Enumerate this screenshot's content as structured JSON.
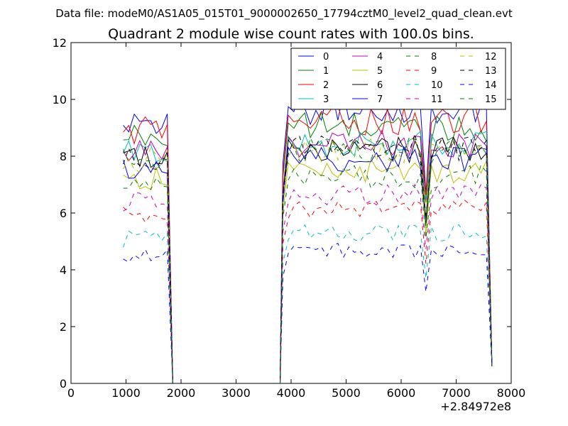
{
  "suptitle": "Data file: modeM0/AS1A05_015T01_9000002650_17794cztM0_level2_quad_clean.evt",
  "chart_data": {
    "type": "line",
    "title": "Quadrant 2 module wise count rates with 100.0s bins.",
    "xlabel": "",
    "ylabel": "",
    "x_offset_label": "+2.84972e8",
    "xlim": [
      0,
      8000
    ],
    "ylim": [
      0,
      12
    ],
    "xticks": [
      0,
      1000,
      2000,
      3000,
      4000,
      5000,
      6000,
      7000,
      8000
    ],
    "xtick_labels": [
      "0",
      "1000",
      "2000",
      "3000",
      "4000",
      "5000",
      "6000",
      "7000",
      "8000"
    ],
    "yticks": [
      0,
      2,
      4,
      6,
      8,
      10,
      12
    ],
    "ytick_labels": [
      "0",
      "2",
      "4",
      "6",
      "8",
      "10",
      "12"
    ],
    "legend_position": "top-right",
    "gap": [
      1850,
      3800
    ],
    "x_start": 950,
    "x_gap_start": 1750,
    "x_resume": 3850,
    "x_end": 7650,
    "series": [
      {
        "name": "0",
        "color": "#0000ff",
        "dashed": false,
        "level": 9.3
      },
      {
        "name": "1",
        "color": "#008000",
        "dashed": false,
        "level": 8.7
      },
      {
        "name": "2",
        "color": "#ff0000",
        "dashed": false,
        "level": 8.9
      },
      {
        "name": "3",
        "color": "#00bfbf",
        "dashed": false,
        "level": 8.1
      },
      {
        "name": "4",
        "color": "#bf00bf",
        "dashed": false,
        "level": 8.1
      },
      {
        "name": "5",
        "color": "#bfbf00",
        "dashed": false,
        "level": 7.2
      },
      {
        "name": "6",
        "color": "#000000",
        "dashed": false,
        "level": 7.9
      },
      {
        "name": "7",
        "color": "#0000ff",
        "dashed": false,
        "level": 7.6
      },
      {
        "name": "8",
        "color": "#008000",
        "dashed": true,
        "level": 7.9
      },
      {
        "name": "9",
        "color": "#ff0000",
        "dashed": true,
        "level": 5.9
      },
      {
        "name": "10",
        "color": "#00bfbf",
        "dashed": true,
        "level": 5.1
      },
      {
        "name": "11",
        "color": "#bf00bf",
        "dashed": true,
        "level": 6.4
      },
      {
        "name": "12",
        "color": "#bfbf00",
        "dashed": true,
        "level": 7.9
      },
      {
        "name": "13",
        "color": "#000000",
        "dashed": true,
        "level": 8.0
      },
      {
        "name": "14",
        "color": "#0000ff",
        "dashed": true,
        "level": 4.5
      },
      {
        "name": "15",
        "color": "#008000",
        "dashed": true,
        "level": 7.0
      }
    ]
  }
}
